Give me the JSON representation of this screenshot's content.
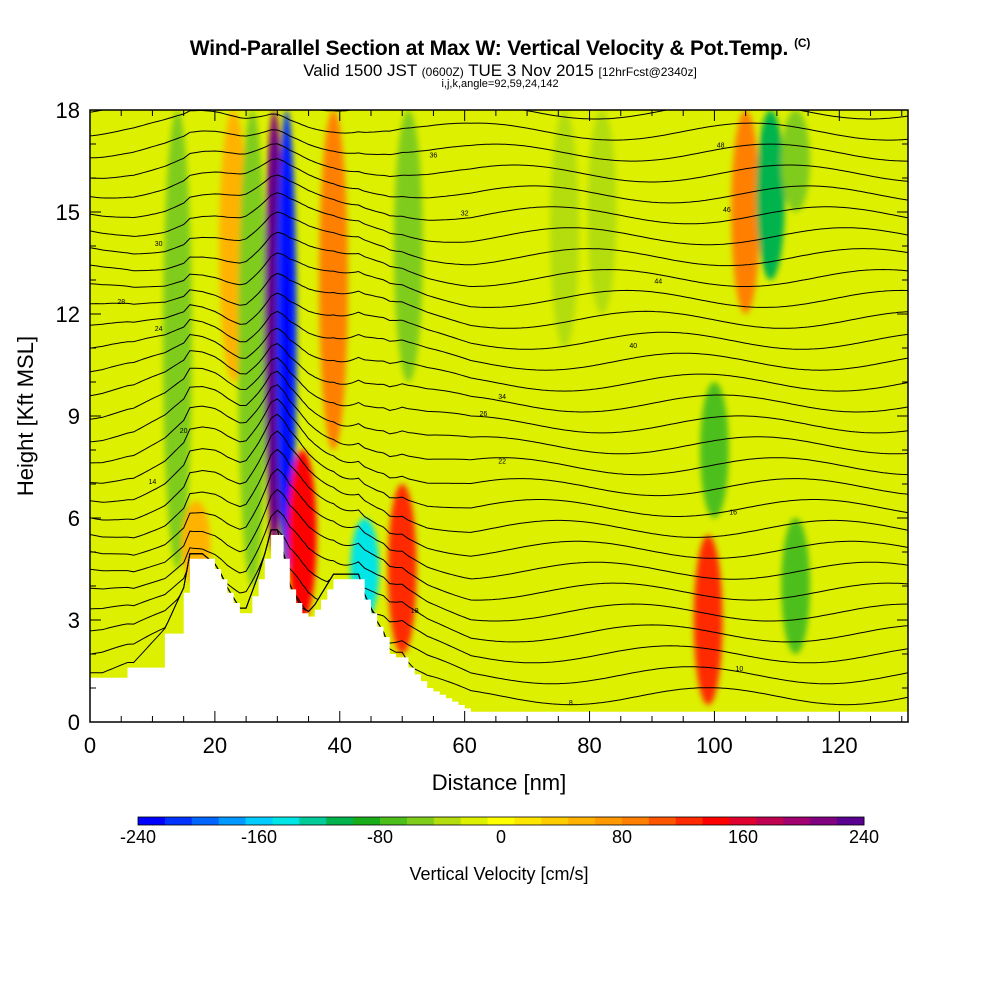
{
  "header": {
    "title": "Wind-Parallel Section at Max W: Vertical Velocity & Pot.Temp.",
    "title_tag": "(C)",
    "subtitle_main": "Valid 1500 JST",
    "subtitle_utc": "(0600Z)",
    "subtitle_date": "TUE 3 Nov 2015",
    "subtitle_fcst": "[12hrFcst@2340z]",
    "subtitle_params": "i,j,k,angle=92,59,24,142"
  },
  "colors": {
    "background_field": "#ddf000",
    "terrain": "#ffffff",
    "contour": "#000000"
  },
  "chart_data": {
    "type": "heatmap",
    "xlabel": "Distance [nm]",
    "ylabel": "Height [Kft MSL]",
    "xlim": [
      0,
      131
    ],
    "ylim": [
      0,
      18
    ],
    "x_ticks": [
      "0",
      "20",
      "40",
      "60",
      "80",
      "100",
      "120"
    ],
    "y_ticks": [
      "0",
      "3",
      "6",
      "9",
      "12",
      "15",
      "18"
    ],
    "grid": false,
    "colorbar": {
      "label": "Vertical Velocity [cm/s]",
      "range": [
        -240,
        240
      ],
      "tick_labels": [
        "-240",
        "-160",
        "-80",
        "0",
        "80",
        "160",
        "240"
      ],
      "colors": [
        "#0000ff",
        "#0033ff",
        "#0066ff",
        "#0099ff",
        "#00ccff",
        "#00e5e5",
        "#00cc99",
        "#00b34d",
        "#1aad1a",
        "#4dbf1a",
        "#80cc1a",
        "#b3dd0d",
        "#ddf000",
        "#ffff00",
        "#ffe600",
        "#ffcc00",
        "#ffb300",
        "#ff9900",
        "#ff8000",
        "#ff5500",
        "#ff2a00",
        "#ff0000",
        "#e00030",
        "#c00050",
        "#a00070",
        "#800080",
        "#5a0090"
      ]
    },
    "vertical_velocity_features": [
      {
        "x": 14,
        "height_range": [
          4.5,
          18
        ],
        "value": -60
      },
      {
        "x": 17,
        "height_range": [
          4,
          6.5
        ],
        "value": 60
      },
      {
        "x": 23,
        "height_range": [
          10,
          18
        ],
        "value": 60
      },
      {
        "x": 26,
        "height_range": [
          4,
          18
        ],
        "value": -60
      },
      {
        "x": 29.5,
        "height_range": [
          5,
          18
        ],
        "value": 220
      },
      {
        "x": 31.5,
        "height_range": [
          4.5,
          18
        ],
        "value": -220
      },
      {
        "x": 34,
        "height_range": [
          3,
          8
        ],
        "value": 140
      },
      {
        "x": 39,
        "height_range": [
          8,
          18
        ],
        "value": 80
      },
      {
        "x": 44,
        "height_range": [
          3,
          6
        ],
        "value": -140
      },
      {
        "x": 50,
        "height_range": [
          2,
          7
        ],
        "value": 120
      },
      {
        "x": 51,
        "height_range": [
          10,
          18
        ],
        "value": -60
      },
      {
        "x": 76,
        "height_range": [
          11,
          18
        ],
        "value": -40
      },
      {
        "x": 82,
        "height_range": [
          12,
          18
        ],
        "value": -40
      },
      {
        "x": 99,
        "height_range": [
          0.5,
          5.5
        ],
        "value": 120
      },
      {
        "x": 100,
        "height_range": [
          6,
          10
        ],
        "value": -80
      },
      {
        "x": 105,
        "height_range": [
          12,
          18
        ],
        "value": 80
      },
      {
        "x": 109,
        "height_range": [
          13,
          18
        ],
        "value": -100
      },
      {
        "x": 113,
        "height_range": [
          2,
          6
        ],
        "value": -80
      },
      {
        "x": 113,
        "height_range": [
          15,
          18
        ],
        "value": -60
      }
    ],
    "terrain_profile": {
      "distance": [
        0,
        2,
        6,
        7,
        12,
        15,
        16,
        18,
        20,
        21,
        22,
        23,
        24,
        25,
        26,
        27,
        28,
        29,
        30,
        31,
        32,
        33,
        34,
        35,
        36,
        37,
        38,
        39,
        40,
        41,
        42,
        43,
        44,
        45,
        46,
        47,
        48,
        49,
        50,
        51,
        52,
        53,
        54,
        55,
        56,
        57,
        58,
        59,
        60,
        61,
        62,
        63,
        131
      ],
      "height": [
        1.3,
        1.3,
        1.6,
        1.6,
        2.6,
        3.8,
        4.8,
        4.8,
        4.5,
        4.2,
        3.8,
        3.5,
        3.2,
        3.2,
        3.7,
        4.2,
        4.8,
        5.5,
        5.5,
        4.8,
        3.9,
        3.5,
        3.2,
        3.1,
        3.3,
        3.6,
        3.9,
        4.2,
        4.2,
        4.2,
        4.2,
        4.2,
        3.6,
        3.2,
        2.8,
        2.5,
        2.0,
        1.9,
        1.9,
        1.6,
        1.4,
        1.2,
        1.0,
        0.9,
        0.8,
        0.7,
        0.6,
        0.5,
        0.4,
        0.3,
        0.3,
        0.3,
        0.3
      ]
    },
    "potential_temperature_contours": [
      {
        "level": 14,
        "anchor": [
          10,
          7
        ]
      },
      {
        "level": 20,
        "anchor": [
          15,
          8.5
        ]
      },
      {
        "level": 24,
        "anchor": [
          11,
          11.5
        ]
      },
      {
        "level": 28,
        "anchor": [
          5,
          12.3
        ]
      },
      {
        "level": 30,
        "anchor": [
          11,
          14
        ]
      },
      {
        "level": 32,
        "anchor": [
          60,
          14.9
        ]
      },
      {
        "level": 36,
        "anchor": [
          55,
          16.6
        ]
      },
      {
        "level": 18,
        "anchor": [
          52,
          3.2
        ]
      },
      {
        "level": 8,
        "anchor": [
          77,
          0.5
        ]
      },
      {
        "level": 10,
        "anchor": [
          104,
          1.5
        ]
      },
      {
        "level": 16,
        "anchor": [
          103,
          6.1
        ]
      },
      {
        "level": 22,
        "anchor": [
          66,
          7.6
        ]
      },
      {
        "level": 26,
        "anchor": [
          63,
          9
        ]
      },
      {
        "level": 34,
        "anchor": [
          66,
          9.5
        ]
      },
      {
        "level": 40,
        "anchor": [
          87,
          11
        ]
      },
      {
        "level": 44,
        "anchor": [
          91,
          12.9
        ]
      },
      {
        "level": 46,
        "anchor": [
          102,
          15
        ]
      },
      {
        "level": 48,
        "anchor": [
          101,
          16.9
        ]
      }
    ]
  }
}
